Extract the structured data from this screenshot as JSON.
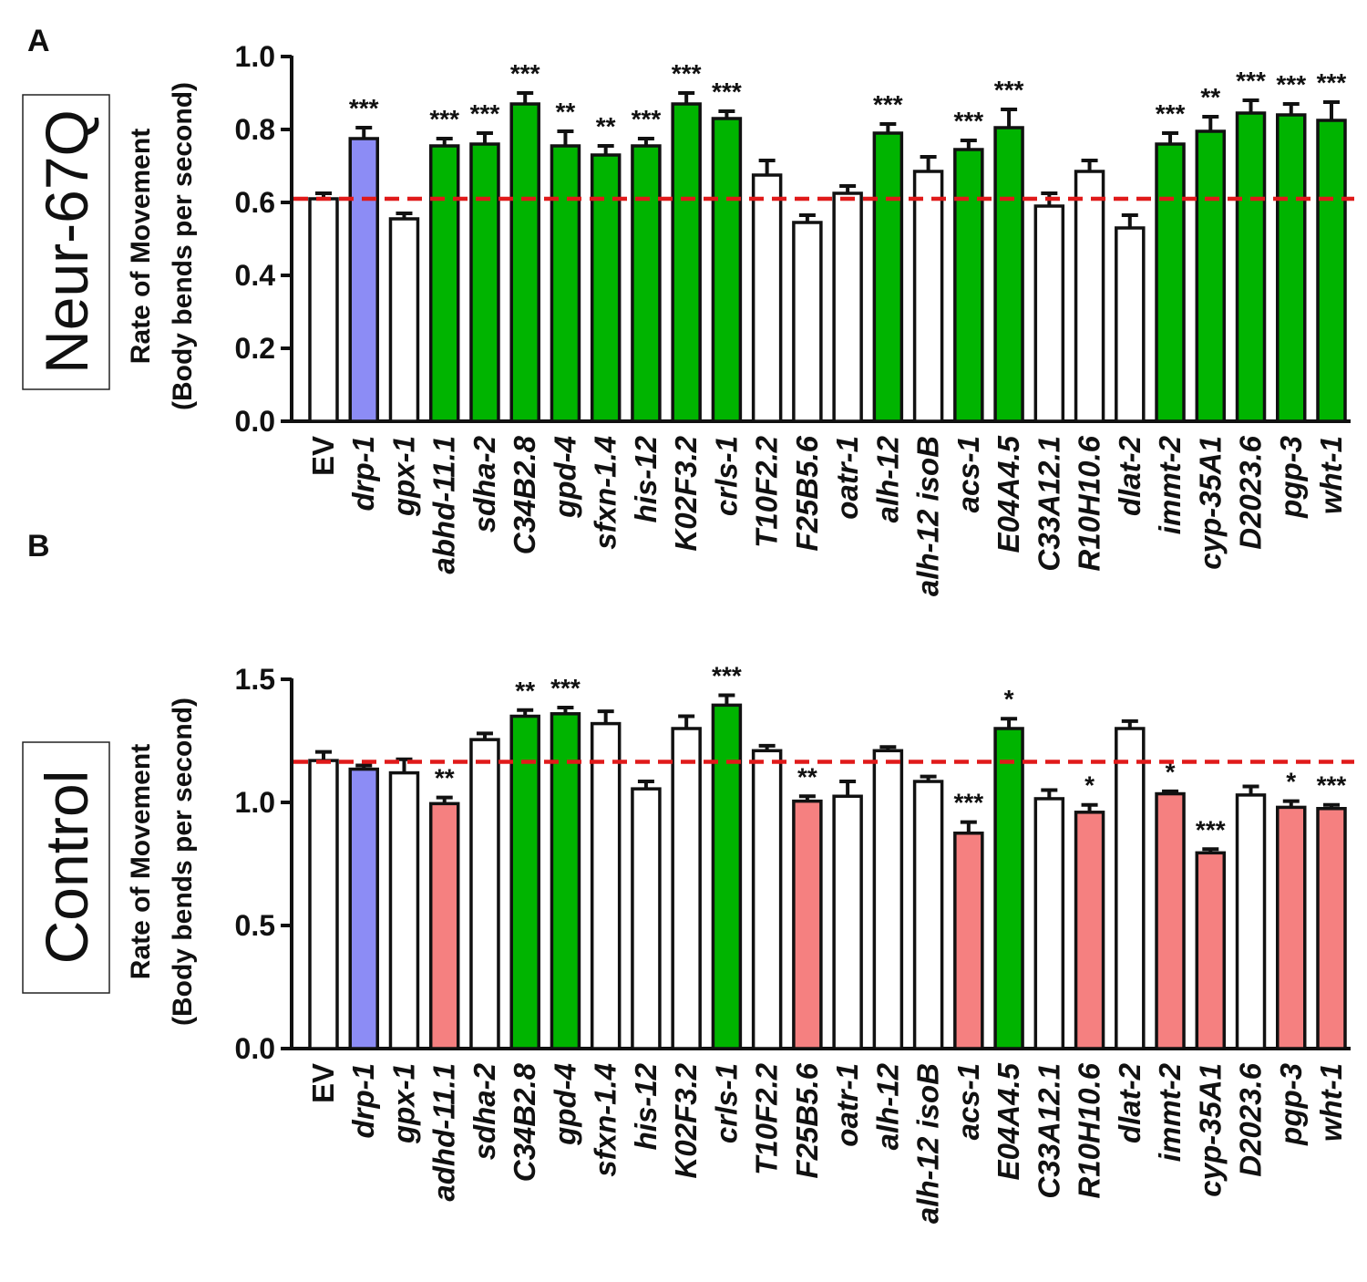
{
  "colors": {
    "white": "#ffffff",
    "blue": "#8c8cf5",
    "green": "#00b400",
    "red": "#f58080",
    "line": "#e01a1a"
  },
  "chart_data": [
    {
      "type": "bar",
      "panel": "A",
      "box_label": "Neur-67Q",
      "ylabel_line1": "Rate of Movement",
      "ylabel_line2": "(Body bends per second)",
      "ylim": [
        0,
        1.0
      ],
      "yticks": [
        "0.0",
        "0.2",
        "0.4",
        "0.6",
        "0.8",
        "1.0"
      ],
      "reference_line": 0.61,
      "categories": [
        "EV",
        "drp-1",
        "gpx-1",
        "abhd-11.1",
        "sdha-2",
        "C34B2.8",
        "gpd-4",
        "sfxn-1.4",
        "his-12",
        "K02F3.2",
        "crls-1",
        "T10F2.2",
        "F25B5.6",
        "oatr-1",
        "alh-12",
        "alh-12 isoB",
        "acs-1",
        "E04A4.5",
        "C33A12.1",
        "R10H10.6",
        "dlat-2",
        "immt-2",
        "cyp-35A1",
        "D2023.6",
        "pgp-3",
        "wht-1"
      ],
      "values": [
        0.61,
        0.775,
        0.555,
        0.755,
        0.76,
        0.87,
        0.755,
        0.73,
        0.755,
        0.87,
        0.83,
        0.675,
        0.545,
        0.625,
        0.79,
        0.685,
        0.745,
        0.805,
        0.59,
        0.685,
        0.53,
        0.76,
        0.795,
        0.845,
        0.84,
        0.825
      ],
      "errors": [
        0.015,
        0.03,
        0.015,
        0.02,
        0.03,
        0.03,
        0.04,
        0.025,
        0.02,
        0.03,
        0.02,
        0.04,
        0.02,
        0.02,
        0.025,
        0.04,
        0.025,
        0.05,
        0.035,
        0.03,
        0.035,
        0.03,
        0.04,
        0.035,
        0.03,
        0.05
      ],
      "colors": [
        "white",
        "blue",
        "white",
        "green",
        "green",
        "green",
        "green",
        "green",
        "green",
        "green",
        "green",
        "white",
        "white",
        "white",
        "green",
        "white",
        "green",
        "green",
        "white",
        "white",
        "white",
        "green",
        "green",
        "green",
        "green",
        "green"
      ],
      "significance": [
        "",
        "***",
        "",
        "***",
        "***",
        "***",
        "**",
        "**",
        "***",
        "***",
        "***",
        "",
        "",
        "",
        "***",
        "",
        "***",
        "***",
        "",
        "",
        "",
        "***",
        "**",
        "***",
        "***",
        "***"
      ]
    },
    {
      "type": "bar",
      "panel": "B",
      "box_label": "Control",
      "ylabel_line1": "Rate of Movement",
      "ylabel_line2": "(Body bends per second)",
      "ylim": [
        0,
        1.5
      ],
      "yticks": [
        "0.0",
        "0.5",
        "1.0",
        "1.5"
      ],
      "reference_line": 1.165,
      "categories": [
        "EV",
        "drp-1",
        "gpx-1",
        "adhd-11.1",
        "sdha-2",
        "C34B2.8",
        "gpd-4",
        "sfxn-1.4",
        "his-12",
        "K02F3.2",
        "crls-1",
        "T10F2.2",
        "F25B5.6",
        "oatr-1",
        "alh-12",
        "alh-12 isoB",
        "acs-1",
        "E04A4.5",
        "C33A12.1",
        "R10H10.6",
        "dlat-2",
        "immt-2",
        "cyp-35A1",
        "D2023.6",
        "pgp-3",
        "wht-1"
      ],
      "values": [
        1.17,
        1.135,
        1.12,
        0.995,
        1.255,
        1.35,
        1.36,
        1.32,
        1.055,
        1.3,
        1.395,
        1.21,
        1.005,
        1.025,
        1.21,
        1.085,
        0.875,
        1.3,
        1.015,
        0.96,
        1.3,
        1.035,
        0.795,
        1.03,
        0.98,
        0.975
      ],
      "errors": [
        0.035,
        0.015,
        0.055,
        0.025,
        0.025,
        0.025,
        0.025,
        0.05,
        0.03,
        0.05,
        0.04,
        0.02,
        0.02,
        0.06,
        0.015,
        0.02,
        0.045,
        0.04,
        0.035,
        0.03,
        0.03,
        0.01,
        0.015,
        0.035,
        0.025,
        0.015
      ],
      "colors": [
        "white",
        "blue",
        "white",
        "red",
        "white",
        "green",
        "green",
        "white",
        "white",
        "white",
        "green",
        "white",
        "red",
        "white",
        "white",
        "white",
        "red",
        "green",
        "white",
        "red",
        "white",
        "red",
        "red",
        "white",
        "red",
        "red"
      ],
      "significance": [
        "",
        "",
        "",
        "**",
        "",
        "**",
        "***",
        "",
        "",
        "",
        "***",
        "",
        "**",
        "",
        "",
        "",
        "***",
        "*",
        "",
        "*",
        "",
        "*",
        "***",
        "",
        "*",
        "***"
      ]
    }
  ]
}
